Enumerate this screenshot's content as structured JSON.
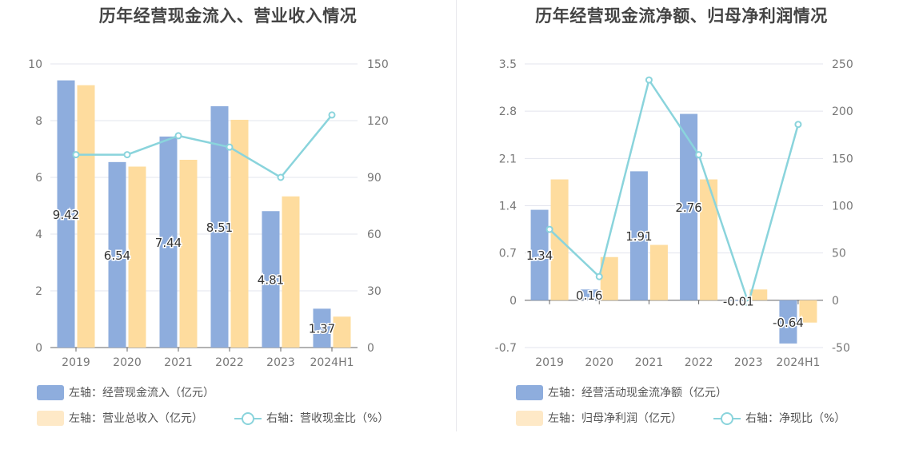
{
  "colors": {
    "bar1": "#8eaddd",
    "bar2": "#fedc9e",
    "line": "#8ad4dc",
    "grid": "#e3e4ee",
    "tick": "#777777"
  },
  "chart_data": [
    {
      "type": "bar",
      "title": "历年经营现金流入、营业收入情况",
      "categories": [
        "2019",
        "2020",
        "2021",
        "2022",
        "2023",
        "2024H1"
      ],
      "left_axis": {
        "ticks": [
          0,
          2,
          4,
          6,
          8,
          10
        ],
        "range": [
          0,
          10
        ]
      },
      "right_axis": {
        "ticks": [
          0,
          30,
          60,
          90,
          120,
          150
        ],
        "range": [
          0,
          150
        ]
      },
      "series": [
        {
          "name": "左轴：经营现金流入（亿元）",
          "kind": "bar",
          "axis": "left",
          "values": [
            9.42,
            6.54,
            7.44,
            8.51,
            4.81,
            1.37
          ],
          "labels": [
            "9.42",
            "6.54",
            "7.44",
            "8.51",
            "4.81",
            "1.37"
          ]
        },
        {
          "name": "左轴：营业总收入（亿元）",
          "kind": "bar",
          "axis": "left",
          "values": [
            9.25,
            6.38,
            6.62,
            8.03,
            5.33,
            1.09
          ]
        },
        {
          "name": "右轴：营收现金比（%）",
          "kind": "line",
          "axis": "right",
          "values": [
            102,
            102,
            112,
            106,
            90,
            123
          ]
        }
      ]
    },
    {
      "type": "bar",
      "title": "历年经营现金流净额、归母净利润情况",
      "categories": [
        "2019",
        "2020",
        "2021",
        "2022",
        "2023",
        "2024H1"
      ],
      "left_axis": {
        "ticks": [
          -0.7,
          0,
          0.7,
          1.4,
          2.1,
          2.8,
          3.5
        ],
        "range": [
          -0.7,
          3.5
        ]
      },
      "right_axis": {
        "ticks": [
          -50,
          0,
          50,
          100,
          150,
          200,
          250
        ],
        "range": [
          -50,
          250
        ]
      },
      "series": [
        {
          "name": "左轴：经营活动现金流净额（亿元）",
          "kind": "bar",
          "axis": "left",
          "values": [
            1.34,
            0.16,
            1.91,
            2.76,
            -0.01,
            -0.64
          ],
          "labels": [
            "1.34",
            "0.16",
            "1.91",
            "2.76",
            "-0.01",
            "-0.64"
          ]
        },
        {
          "name": "左轴：归母净利润（亿元）",
          "kind": "bar",
          "axis": "left",
          "values": [
            1.79,
            0.64,
            0.82,
            1.79,
            0.16,
            -0.33
          ]
        },
        {
          "name": "右轴：净现比（%）",
          "kind": "line",
          "axis": "right",
          "values": [
            75,
            25,
            233,
            154,
            -3,
            186
          ]
        }
      ]
    }
  ]
}
